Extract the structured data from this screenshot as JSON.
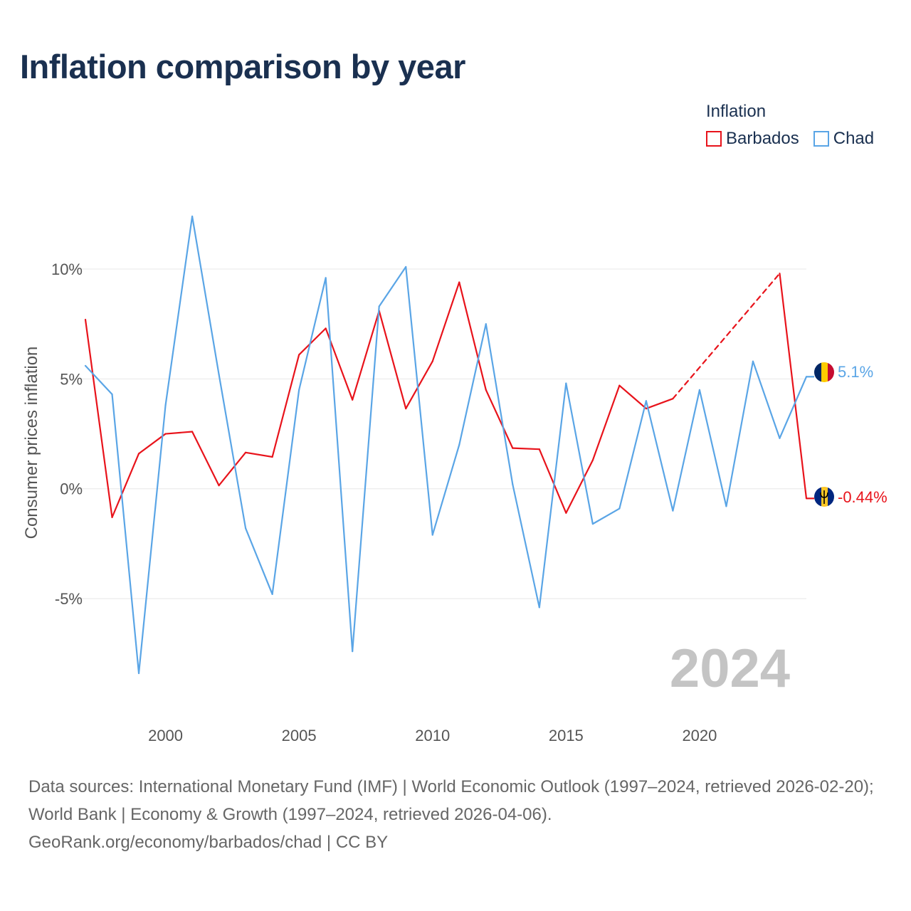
{
  "title": "Inflation comparison by year",
  "legend": {
    "title": "Inflation",
    "items": [
      {
        "name": "Barbados",
        "color": "#e8131b"
      },
      {
        "name": "Chad",
        "color": "#5aa5e6"
      }
    ]
  },
  "chart_data": {
    "type": "line",
    "title": "Inflation comparison by year",
    "xlabel": "",
    "ylabel": "Consumer prices inflation",
    "xlim": [
      1997,
      2024
    ],
    "ylim": [
      -9.5,
      13.5
    ],
    "x_ticks": [
      2000,
      2005,
      2010,
      2015,
      2020
    ],
    "y_ticks": [
      {
        "value": 10,
        "label": "10%"
      },
      {
        "value": 5,
        "label": "5%"
      },
      {
        "value": 0,
        "label": "0%"
      },
      {
        "value": -5,
        "label": "-5%"
      }
    ],
    "grid": true,
    "legend_position": "top-right",
    "year_watermark": "2024",
    "series": [
      {
        "name": "Barbados",
        "color": "#e8131b",
        "dashed_from": 2019,
        "dashed_to": 2023,
        "end_label": "-0.44%",
        "points": [
          [
            1997,
            7.7
          ],
          [
            1998,
            -1.3
          ],
          [
            1999,
            1.6
          ],
          [
            2000,
            2.5
          ],
          [
            2001,
            2.6
          ],
          [
            2002,
            0.15
          ],
          [
            2003,
            1.65
          ],
          [
            2004,
            1.45
          ],
          [
            2005,
            6.1
          ],
          [
            2006,
            7.3
          ],
          [
            2007,
            4.05
          ],
          [
            2008,
            8.1
          ],
          [
            2009,
            3.65
          ],
          [
            2010,
            5.8
          ],
          [
            2011,
            9.4
          ],
          [
            2012,
            4.5
          ],
          [
            2013,
            1.85
          ],
          [
            2014,
            1.8
          ],
          [
            2015,
            -1.1
          ],
          [
            2016,
            1.3
          ],
          [
            2017,
            4.7
          ],
          [
            2018,
            3.65
          ],
          [
            2019,
            4.1
          ],
          [
            2023,
            9.8
          ],
          [
            2024,
            -0.44
          ]
        ]
      },
      {
        "name": "Chad",
        "color": "#5aa5e6",
        "end_label": "5.1%",
        "points": [
          [
            1997,
            5.6
          ],
          [
            1998,
            4.3
          ],
          [
            1999,
            -8.4
          ],
          [
            2000,
            3.8
          ],
          [
            2001,
            12.4
          ],
          [
            2002,
            5.2
          ],
          [
            2003,
            -1.8
          ],
          [
            2004,
            -4.8
          ],
          [
            2005,
            4.5
          ],
          [
            2006,
            9.6
          ],
          [
            2007,
            -7.4
          ],
          [
            2008,
            8.3
          ],
          [
            2009,
            10.1
          ],
          [
            2010,
            -2.1
          ],
          [
            2011,
            2.0
          ],
          [
            2012,
            7.5
          ],
          [
            2013,
            0.2
          ],
          [
            2014,
            -5.4
          ],
          [
            2015,
            4.8
          ],
          [
            2016,
            -1.6
          ],
          [
            2017,
            -0.9
          ],
          [
            2018,
            4.0
          ],
          [
            2019,
            -1.0
          ],
          [
            2020,
            4.5
          ],
          [
            2021,
            -0.8
          ],
          [
            2022,
            5.8
          ],
          [
            2023,
            2.3
          ],
          [
            2024,
            5.1
          ]
        ]
      }
    ]
  },
  "source": {
    "line1": "Data sources: International Monetary Fund (IMF) | World Economic Outlook (1997–2024, retrieved 2026-02-20); World Bank | Economy & Growth (1997–2024, retrieved 2026-04-06).",
    "line2": "GeoRank.org/economy/barbados/chad | CC BY"
  }
}
